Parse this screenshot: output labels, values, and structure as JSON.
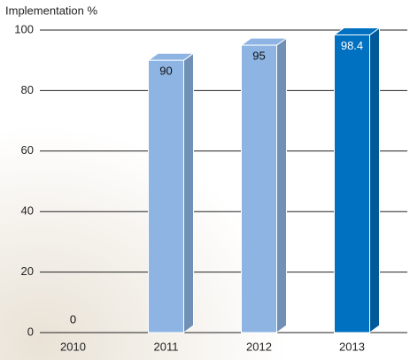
{
  "chart_data": {
    "type": "bar3d",
    "title": "Implementation %",
    "categories": [
      "2010",
      "2011",
      "2012",
      "2013"
    ],
    "values": [
      0,
      90,
      95,
      98.4
    ],
    "colors": [
      "#8db4e2",
      "#8db4e2",
      "#8db4e2",
      "#0070c0"
    ],
    "ylim": [
      0,
      100
    ],
    "yticks": [
      0,
      20,
      40,
      60,
      80,
      100
    ],
    "grid": true
  }
}
